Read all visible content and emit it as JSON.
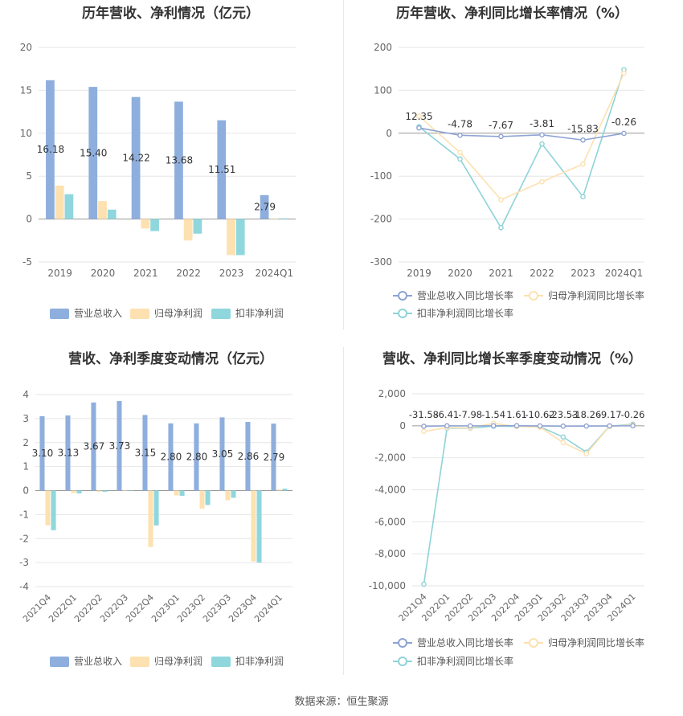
{
  "source": "数据来源：恒生聚源",
  "colors": {
    "revenue": "#8eaedd",
    "netprofit": "#fde1b0",
    "deducted": "#8fd7dd",
    "l_revenue": "#8ea3d3",
    "l_net": "#fde1b0",
    "l_ded": "#8ed3d8"
  },
  "chart_data": [
    {
      "type": "bar",
      "title": "历年营收、净利情况（亿元）",
      "categories": [
        "2019",
        "2020",
        "2021",
        "2022",
        "2023",
        "2024Q1"
      ],
      "series": [
        {
          "name": "营业总收入",
          "values": [
            16.18,
            15.4,
            14.22,
            13.68,
            11.51,
            2.79
          ]
        },
        {
          "name": "归母净利润",
          "values": [
            3.9,
            2.1,
            -1.1,
            -2.5,
            -4.2,
            0.05
          ]
        },
        {
          "name": "扣非净利润",
          "values": [
            2.9,
            1.1,
            -1.4,
            -1.7,
            -4.2,
            0.08
          ]
        }
      ],
      "data_labels": [
        "16.18",
        "15.40",
        "14.22",
        "13.68",
        "11.51",
        "2.79"
      ],
      "ylim": [
        -5,
        20
      ],
      "yticks": [
        "20",
        "15",
        "10",
        "5",
        "0",
        "-5"
      ],
      "legend": "bottom"
    },
    {
      "type": "line",
      "title": "历年营收、净利同比增长率情况（%）",
      "categories": [
        "2019",
        "2020",
        "2021",
        "2022",
        "2023",
        "2024Q1"
      ],
      "series": [
        {
          "name": "营业总收入同比增长率",
          "values": [
            12.35,
            -4.78,
            -7.67,
            -3.81,
            -15.83,
            -0.26
          ]
        },
        {
          "name": "归母净利润同比增长率",
          "values": [
            40,
            -45,
            -155,
            -113,
            -72,
            140
          ]
        },
        {
          "name": "扣非净利润同比增长率",
          "values": [
            15,
            -60,
            -220,
            -25,
            -148,
            148
          ]
        }
      ],
      "data_labels": [
        "12.35",
        "-4.78",
        "-7.67",
        "-3.81",
        "-15.83",
        "-0.26"
      ],
      "ylim": [
        -300,
        200
      ],
      "yticks": [
        "200",
        "100",
        "0",
        "-100",
        "-200",
        "-300"
      ],
      "legend": "bottom"
    },
    {
      "type": "bar",
      "title": "营收、净利季度变动情况（亿元）",
      "categories": [
        "2021Q4",
        "2022Q1",
        "2022Q2",
        "2022Q3",
        "2022Q4",
        "2023Q1",
        "2023Q2",
        "2023Q3",
        "2023Q4",
        "2024Q1"
      ],
      "series": [
        {
          "name": "营业总收入",
          "values": [
            3.1,
            3.13,
            3.67,
            3.73,
            3.15,
            2.8,
            2.8,
            3.05,
            2.86,
            2.79
          ]
        },
        {
          "name": "归母净利润",
          "values": [
            -1.45,
            -0.1,
            -0.05,
            0.0,
            -2.35,
            -0.2,
            -0.75,
            -0.4,
            -2.95,
            0.05
          ]
        },
        {
          "name": "扣非净利润",
          "values": [
            -1.65,
            -0.12,
            -0.05,
            -0.02,
            -1.45,
            -0.22,
            -0.6,
            -0.3,
            -3.0,
            0.08
          ]
        }
      ],
      "data_labels": [
        "3.10",
        "3.13",
        "3.67",
        "3.73",
        "3.15",
        "2.80",
        "2.80",
        "3.05",
        "2.86",
        "2.79"
      ],
      "ylim": [
        -4,
        4
      ],
      "yticks": [
        "4",
        "3",
        "2",
        "1",
        "0",
        "-1",
        "-2",
        "-3",
        "-4"
      ],
      "legend": "bottom"
    },
    {
      "type": "line",
      "title": "营收、净利同比增长率季度变动情况（%）",
      "categories": [
        "2021Q4",
        "2022Q1",
        "2022Q2",
        "2022Q3",
        "2022Q4",
        "2023Q1",
        "2023Q2",
        "2023Q3",
        "2023Q4",
        "2024Q1"
      ],
      "series": [
        {
          "name": "营业总收入同比增长率",
          "values": [
            -31.58,
            -6.41,
            -7.98,
            -1.54,
            1.61,
            -10.62,
            -23.53,
            -18.26,
            -9.17,
            -0.26
          ]
        },
        {
          "name": "归母净利润同比增长率",
          "values": [
            -350,
            -120,
            -130,
            150,
            -50,
            -80,
            -1050,
            -1750,
            -40,
            60
          ]
        },
        {
          "name": "扣非净利润同比增长率",
          "values": [
            -9900,
            -150,
            -150,
            -20,
            -40,
            -60,
            -700,
            -1650,
            -30,
            100
          ]
        }
      ],
      "data_labels": [
        "-31.58",
        "-6.41",
        "-7.98",
        "-1.54",
        "1.61",
        "-10.62",
        "-23.53",
        "-18.26",
        "-9.17",
        "-0.26"
      ],
      "ylim": [
        -10000,
        2000
      ],
      "yticks": [
        "2,000",
        "0",
        "-2,000",
        "-4,000",
        "-6,000",
        "-8,000",
        "-10,000"
      ],
      "legend": "bottom"
    }
  ]
}
